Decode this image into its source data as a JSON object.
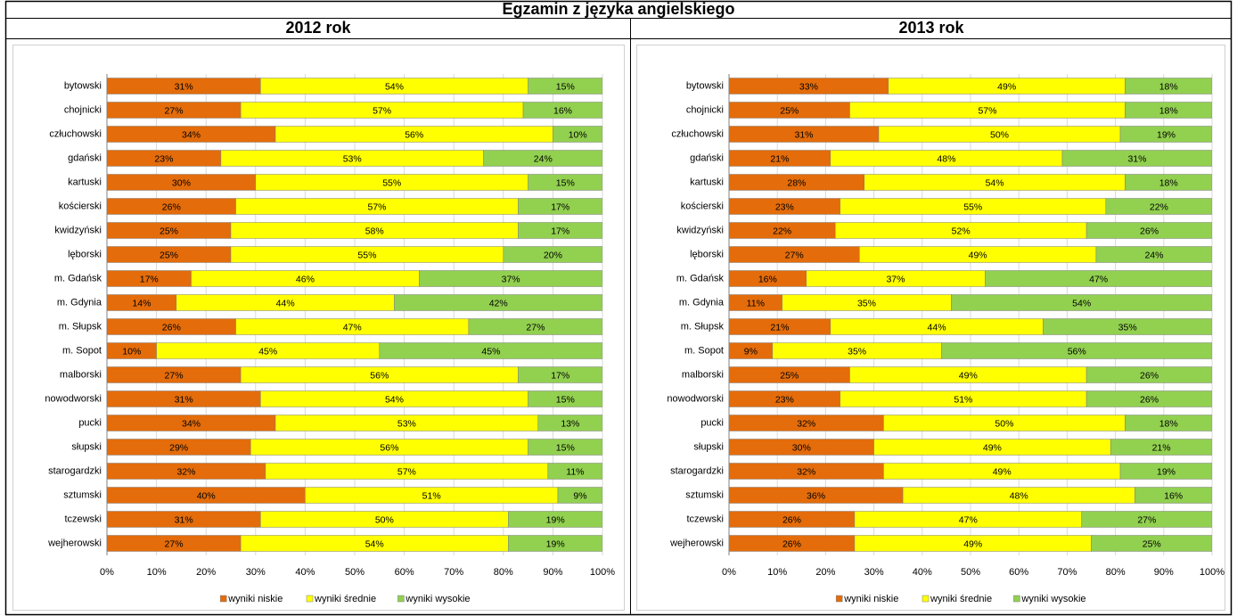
{
  "header": {
    "title": "Egzamin z języka angielskiego"
  },
  "chart_data": [
    {
      "type": "stacked-bar-horizontal",
      "title": "2012 rok",
      "categories": [
        "bytowski",
        "chojnicki",
        "człuchowski",
        "gdański",
        "kartuski",
        "kościerski",
        "kwidzyński",
        "lęborski",
        "m. Gdańsk",
        "m. Gdynia",
        "m. Słupsk",
        "m. Sopot",
        "malborski",
        "nowodworski",
        "pucki",
        "słupski",
        "starogardzki",
        "sztumski",
        "tczewski",
        "wejherowski"
      ],
      "series": [
        {
          "name": "wyniki niskie",
          "color": "#e46c0a",
          "values": [
            31,
            27,
            34,
            23,
            30,
            26,
            25,
            25,
            17,
            14,
            26,
            10,
            27,
            31,
            34,
            29,
            32,
            40,
            31,
            27
          ],
          "value_labels": [
            "31%",
            "27%",
            "34%",
            "23%",
            "30%",
            "26%",
            "25%",
            "25%",
            "17%",
            "14%",
            "26%",
            "10%",
            "27%",
            "31%",
            "34%",
            "29%",
            "32%",
            "40%",
            "31%",
            "27%"
          ]
        },
        {
          "name": "wyniki średnie",
          "color": "#ffff00",
          "values": [
            54,
            57,
            56,
            53,
            55,
            57,
            58,
            55,
            46,
            44,
            47,
            45,
            56,
            54,
            53,
            56,
            57,
            51,
            50,
            54
          ],
          "value_labels": [
            "54%",
            "57%",
            "56%",
            "53%",
            "55%",
            "57%",
            "58%",
            "55%",
            "46%",
            "44%",
            "47%",
            "45%",
            "56%",
            "54%",
            "53%",
            "56%",
            "57%",
            "51%",
            "50%",
            "54%"
          ]
        },
        {
          "name": "wyniki wysokie",
          "color": "#92d050",
          "values": [
            15,
            16,
            10,
            24,
            15,
            17,
            17,
            20,
            37,
            42,
            27,
            45,
            17,
            15,
            13,
            15,
            11,
            9,
            19,
            19
          ],
          "value_labels": [
            "15%",
            "16%",
            "10%",
            "24%",
            "15%",
            "17%",
            "17%",
            "20%",
            "37%",
            "42%",
            "27%",
            "45%",
            "17%",
            "15%",
            "13%",
            "15%",
            "11%",
            "9%",
            "19%",
            "19%"
          ]
        }
      ],
      "xlim": [
        0,
        100
      ],
      "xticks": [
        {
          "value": 0,
          "label": "0%"
        },
        {
          "value": 10,
          "label": "10%"
        },
        {
          "value": 20,
          "label": "20%"
        },
        {
          "value": 30,
          "label": "30%"
        },
        {
          "value": 40,
          "label": "40%"
        },
        {
          "value": 50,
          "label": "50%"
        },
        {
          "value": 60,
          "label": "60%"
        },
        {
          "value": 70,
          "label": "70%"
        },
        {
          "value": 80,
          "label": "80%"
        },
        {
          "value": 90,
          "label": "90%"
        },
        {
          "value": 100,
          "label": "100%"
        }
      ],
      "grid": true,
      "legend": "bottom"
    },
    {
      "type": "stacked-bar-horizontal",
      "title": "2013 rok",
      "categories": [
        "bytowski",
        "chojnicki",
        "człuchowski",
        "gdański",
        "kartuski",
        "kościerski",
        "kwidzyński",
        "lęborski",
        "m. Gdańsk",
        "m. Gdynia",
        "m. Słupsk",
        "m. Sopot",
        "malborski",
        "nowodworski",
        "pucki",
        "słupski",
        "starogardzki",
        "sztumski",
        "tczewski",
        "wejherowski"
      ],
      "series": [
        {
          "name": "wyniki niskie",
          "color": "#e46c0a",
          "values": [
            33,
            25,
            31,
            21,
            28,
            23,
            22,
            27,
            16,
            11,
            21,
            9,
            25,
            23,
            32,
            30,
            32,
            36,
            26,
            26
          ],
          "value_labels": [
            "33%",
            "25%",
            "31%",
            "21%",
            "28%",
            "23%",
            "22%",
            "27%",
            "16%",
            "11%",
            "21%",
            "9%",
            "25%",
            "23%",
            "32%",
            "30%",
            "32%",
            "36%",
            "26%",
            "26%"
          ]
        },
        {
          "name": "wyniki średnie",
          "color": "#ffff00",
          "values": [
            49,
            57,
            50,
            48,
            54,
            55,
            52,
            49,
            37,
            35,
            44,
            35,
            49,
            51,
            50,
            49,
            49,
            48,
            47,
            49
          ],
          "value_labels": [
            "49%",
            "57%",
            "50%",
            "48%",
            "54%",
            "55%",
            "52%",
            "49%",
            "37%",
            "35%",
            "44%",
            "35%",
            "49%",
            "51%",
            "50%",
            "49%",
            "49%",
            "48%",
            "47%",
            "49%"
          ]
        },
        {
          "name": "wyniki wysokie",
          "color": "#92d050",
          "values": [
            18,
            18,
            19,
            31,
            18,
            22,
            26,
            24,
            47,
            54,
            35,
            56,
            26,
            26,
            18,
            21,
            19,
            16,
            27,
            25
          ],
          "value_labels": [
            "18%",
            "18%",
            "19%",
            "31%",
            "18%",
            "22%",
            "26%",
            "24%",
            "47%",
            "54%",
            "35%",
            "56%",
            "26%",
            "26%",
            "18%",
            "21%",
            "19%",
            "16%",
            "27%",
            "25%"
          ]
        }
      ],
      "xlim": [
        0,
        100
      ],
      "xticks": [
        {
          "value": 0,
          "label": "0%"
        },
        {
          "value": 10,
          "label": "10%"
        },
        {
          "value": 20,
          "label": "20%"
        },
        {
          "value": 30,
          "label": "30%"
        },
        {
          "value": 40,
          "label": "40%"
        },
        {
          "value": 50,
          "label": "50%"
        },
        {
          "value": 60,
          "label": "60%"
        },
        {
          "value": 70,
          "label": "70%"
        },
        {
          "value": 80,
          "label": "80%"
        },
        {
          "value": 90,
          "label": "90%"
        },
        {
          "value": 100,
          "label": "100%"
        }
      ],
      "grid": true,
      "legend": "bottom"
    }
  ]
}
